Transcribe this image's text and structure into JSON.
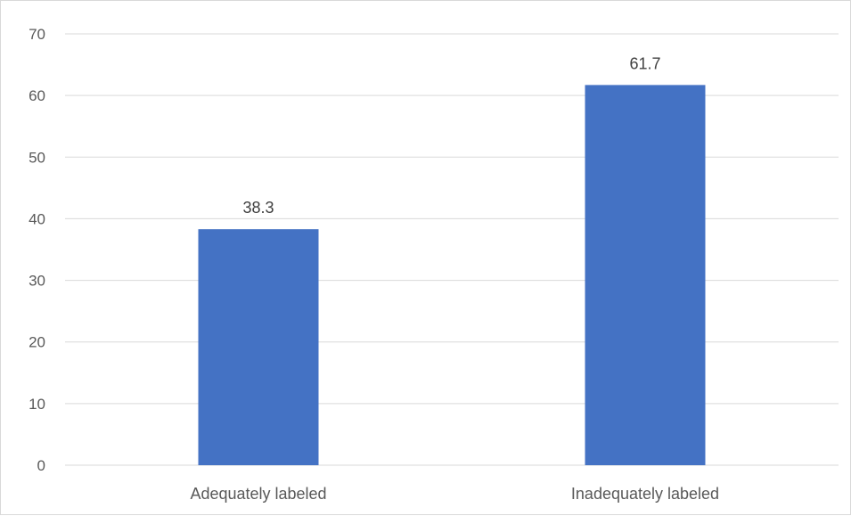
{
  "chart_data": {
    "type": "bar",
    "categories": [
      "Adequately labeled",
      "Inadequately labeled"
    ],
    "values": [
      38.3,
      61.7
    ],
    "data_labels": [
      "38.3",
      "61.7"
    ],
    "title": "",
    "xlabel": "",
    "ylabel": "",
    "ylim": [
      0,
      70
    ],
    "yticks": [
      0,
      10,
      20,
      30,
      40,
      50,
      60,
      70
    ],
    "ytick_labels": [
      "0",
      "10",
      "20",
      "30",
      "40",
      "50",
      "60",
      "70"
    ],
    "grid": true,
    "legend": "none",
    "bar_color": "#4472c4"
  }
}
